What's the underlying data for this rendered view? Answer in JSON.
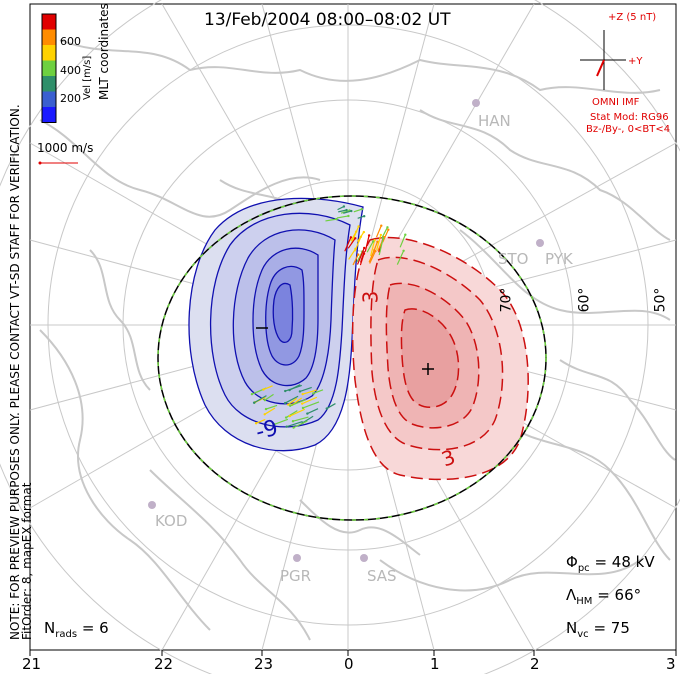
{
  "title": "13/Feb/2004 08:00–08:02 UT",
  "notes": {
    "preview": "NOTE: FOR PREVIEW PURPOSES ONLY. PLEASE CONTACT VT-SD STAFF FOR VERIFICATION.",
    "fit_order": "FitOrder: 8, mapEX format"
  },
  "colorbar": {
    "label": "Vel [m/s]",
    "coords": "MLT coordinates",
    "ticks": [
      "600",
      "400",
      "200"
    ],
    "colors": [
      "#e00000",
      "#ff8c00",
      "#ffd200",
      "#6ed040",
      "#2f8f6a",
      "#3a5fd0",
      "#1a1aff"
    ]
  },
  "scale_vector": "1000 m/s",
  "imf": {
    "z_label": "+Z (5 nT)",
    "y_label": "+Y",
    "source": "OMNI IMF",
    "model": "Stat Mod: RG96",
    "condition": "Bz-/By-, 0<BT<4"
  },
  "latitude_labels": [
    "70°",
    "60°",
    "50°"
  ],
  "stations": [
    "HAN",
    "STO",
    "PYK",
    "KOD",
    "PGR",
    "SAS"
  ],
  "contour_labels": [
    "-9",
    "3",
    "3"
  ],
  "potential_markers": {
    "min": "−",
    "max": "+"
  },
  "stats": {
    "phi_pc": {
      "sym": "Φ",
      "sub": "pc",
      "value": "= 48 kV"
    },
    "lambda_hm": {
      "sym": "Λ",
      "sub": "HM",
      "value": "= 66°"
    },
    "n_vc": {
      "sym": "N",
      "sub": "vc",
      "value": "= 75"
    },
    "n_rads": {
      "sym": "N",
      "sub": "rads",
      "value": "= 6"
    }
  },
  "mlt_axis": [
    "21",
    "22",
    "23",
    "0",
    "1",
    "2",
    "3"
  ],
  "map_colors": {
    "negative_fill": "#dcdff0",
    "negative_line": "#1010b0",
    "positive_fill": "#f8d8d8",
    "positive_line": "#cc1010",
    "coastline": "#c8c8c8",
    "grid": "#c8c8c8",
    "hmb_line": "#000000",
    "hmb_dash": "#6ed040"
  }
}
